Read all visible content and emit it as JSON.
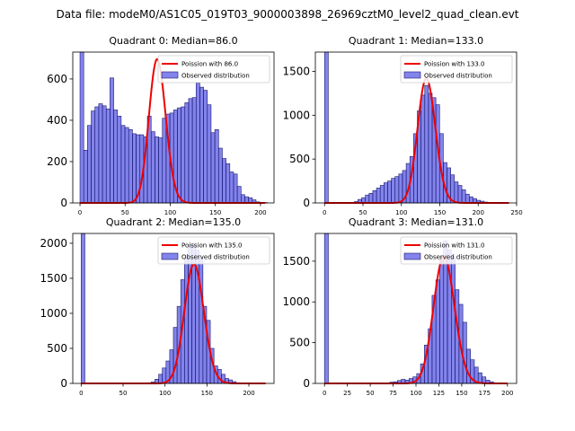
{
  "figure": {
    "suptitle": "Data file: modeM0/AS1C05_019T03_9000003898_26969cztM0_level2_quad_clean.evt"
  },
  "chart_data": [
    {
      "type": "bar",
      "title": "Quadrant 0: Median=86.0",
      "median": 86.0,
      "xlim": [
        -8,
        215
      ],
      "ylim": [
        0,
        730
      ],
      "xticks": [
        0,
        50,
        100,
        150,
        200
      ],
      "yticks": [
        0,
        200,
        400,
        600
      ],
      "bin_width": 4.15,
      "bins": [
        [
          0,
          730
        ],
        [
          4.15,
          255
        ],
        [
          8.3,
          375
        ],
        [
          12.45,
          445
        ],
        [
          16.6,
          465
        ],
        [
          20.75,
          480
        ],
        [
          24.9,
          470
        ],
        [
          29.05,
          455
        ],
        [
          33.2,
          605
        ],
        [
          37.35,
          450
        ],
        [
          41.5,
          420
        ],
        [
          45.65,
          375
        ],
        [
          49.8,
          365
        ],
        [
          53.95,
          355
        ],
        [
          58.1,
          335
        ],
        [
          62.25,
          330
        ],
        [
          66.4,
          330
        ],
        [
          70.55,
          320
        ],
        [
          74.7,
          420
        ],
        [
          78.85,
          345
        ],
        [
          83.0,
          320
        ],
        [
          87.15,
          315
        ],
        [
          91.3,
          410
        ],
        [
          95.45,
          430
        ],
        [
          99.6,
          435
        ],
        [
          103.75,
          450
        ],
        [
          107.9,
          460
        ],
        [
          112.05,
          465
        ],
        [
          116.2,
          485
        ],
        [
          120.35,
          505
        ],
        [
          124.5,
          510
        ],
        [
          128.65,
          580
        ],
        [
          132.8,
          560
        ],
        [
          136.95,
          545
        ],
        [
          141.1,
          475
        ],
        [
          145.25,
          340
        ],
        [
          149.4,
          355
        ],
        [
          153.55,
          265
        ],
        [
          157.7,
          215
        ],
        [
          161.85,
          190
        ],
        [
          166.0,
          150
        ],
        [
          170.15,
          140
        ],
        [
          174.3,
          80
        ],
        [
          178.45,
          40
        ],
        [
          182.6,
          30
        ],
        [
          186.75,
          25
        ],
        [
          190.9,
          15
        ],
        [
          195.05,
          5
        ],
        [
          199.2,
          3
        ],
        [
          203.35,
          2
        ]
      ],
      "poisson_curve": {
        "mean": 86.0,
        "peak": 695
      },
      "legend": [
        "Poission with 86.0",
        "Observed distribution"
      ]
    },
    {
      "type": "bar",
      "title": "Quadrant 1: Median=133.0",
      "median": 133.0,
      "xlim": [
        -12,
        250
      ],
      "ylim": [
        0,
        1720
      ],
      "xticks": [
        0,
        50,
        100,
        150,
        200,
        250
      ],
      "yticks": [
        0,
        500,
        1000,
        1500
      ],
      "bin_width": 4.83,
      "bins": [
        [
          0,
          1720
        ],
        [
          38.64,
          15
        ],
        [
          43.47,
          40
        ],
        [
          48.3,
          60
        ],
        [
          53.13,
          90
        ],
        [
          57.96,
          110
        ],
        [
          62.79,
          140
        ],
        [
          67.62,
          170
        ],
        [
          72.45,
          200
        ],
        [
          77.28,
          230
        ],
        [
          82.11,
          250
        ],
        [
          86.94,
          280
        ],
        [
          91.77,
          300
        ],
        [
          96.6,
          330
        ],
        [
          101.43,
          370
        ],
        [
          106.26,
          450
        ],
        [
          111.09,
          530
        ],
        [
          115.92,
          790
        ],
        [
          120.75,
          1050
        ],
        [
          125.58,
          1230
        ],
        [
          130.41,
          1340
        ],
        [
          135.24,
          1250
        ],
        [
          140.07,
          1200
        ],
        [
          144.9,
          1120
        ],
        [
          149.73,
          790
        ],
        [
          154.56,
          460
        ],
        [
          159.39,
          400
        ],
        [
          164.22,
          320
        ],
        [
          169.05,
          240
        ],
        [
          173.88,
          200
        ],
        [
          178.71,
          150
        ],
        [
          183.54,
          100
        ],
        [
          188.37,
          70
        ],
        [
          193.2,
          50
        ],
        [
          198.03,
          30
        ],
        [
          202.86,
          20
        ],
        [
          207.69,
          10
        ],
        [
          212.52,
          5
        ]
      ],
      "poisson_curve": {
        "mean": 133.0,
        "peak": 1420
      },
      "legend": [
        "Poission with 133.0",
        "Observed distribution"
      ]
    },
    {
      "type": "bar",
      "title": "Quadrant 2: Median=135.0",
      "median": 135.0,
      "xlim": [
        -10,
        230
      ],
      "ylim": [
        0,
        2140
      ],
      "xticks": [
        0,
        50,
        100,
        150,
        200
      ],
      "yticks": [
        0,
        500,
        1000,
        1500,
        2000
      ],
      "bin_width": 4.4,
      "bins": [
        [
          0,
          2140
        ],
        [
          79.2,
          10
        ],
        [
          83.6,
          20
        ],
        [
          88.0,
          60
        ],
        [
          92.4,
          130
        ],
        [
          96.8,
          220
        ],
        [
          101.2,
          320
        ],
        [
          105.6,
          480
        ],
        [
          110.0,
          800
        ],
        [
          114.4,
          1100
        ],
        [
          118.8,
          1480
        ],
        [
          123.2,
          1800
        ],
        [
          127.6,
          1980
        ],
        [
          132.0,
          2000
        ],
        [
          136.4,
          1900
        ],
        [
          140.8,
          1800
        ],
        [
          145.2,
          1100
        ],
        [
          149.6,
          900
        ],
        [
          154.0,
          500
        ],
        [
          158.4,
          250
        ],
        [
          162.8,
          200
        ],
        [
          167.2,
          130
        ],
        [
          171.6,
          70
        ],
        [
          176.0,
          50
        ],
        [
          180.4,
          25
        ],
        [
          184.8,
          10
        ]
      ],
      "poisson_curve": {
        "mean": 135.0,
        "peak": 1700
      },
      "legend": [
        "Poission with 135.0",
        "Observed distribution"
      ]
    },
    {
      "type": "bar",
      "title": "Quadrant 3: Median=131.0",
      "median": 131.0,
      "xlim": [
        -10,
        210
      ],
      "ylim": [
        0,
        1840
      ],
      "xticks": [
        0,
        25,
        50,
        75,
        100,
        125,
        150,
        175,
        200
      ],
      "yticks": [
        0,
        500,
        1000,
        1500
      ],
      "bin_width": 4.2,
      "bins": [
        [
          0,
          1840
        ],
        [
          67.2,
          5
        ],
        [
          71.4,
          15
        ],
        [
          75.6,
          20
        ],
        [
          79.8,
          35
        ],
        [
          84.0,
          50
        ],
        [
          88.2,
          40
        ],
        [
          92.4,
          60
        ],
        [
          96.6,
          80
        ],
        [
          100.8,
          120
        ],
        [
          105.0,
          240
        ],
        [
          109.2,
          470
        ],
        [
          113.4,
          670
        ],
        [
          117.6,
          1080
        ],
        [
          121.8,
          1270
        ],
        [
          126.0,
          1550
        ],
        [
          130.2,
          1750
        ],
        [
          134.4,
          1640
        ],
        [
          138.6,
          1550
        ],
        [
          142.8,
          1150
        ],
        [
          147.0,
          970
        ],
        [
          151.2,
          750
        ],
        [
          155.4,
          420
        ],
        [
          159.6,
          290
        ],
        [
          163.8,
          200
        ],
        [
          168.0,
          130
        ],
        [
          172.2,
          80
        ],
        [
          176.4,
          40
        ],
        [
          180.6,
          20
        ],
        [
          184.8,
          8
        ]
      ],
      "poisson_curve": {
        "mean": 131.0,
        "peak": 1560
      },
      "legend": [
        "Poission with 131.0",
        "Observed distribution"
      ]
    }
  ]
}
